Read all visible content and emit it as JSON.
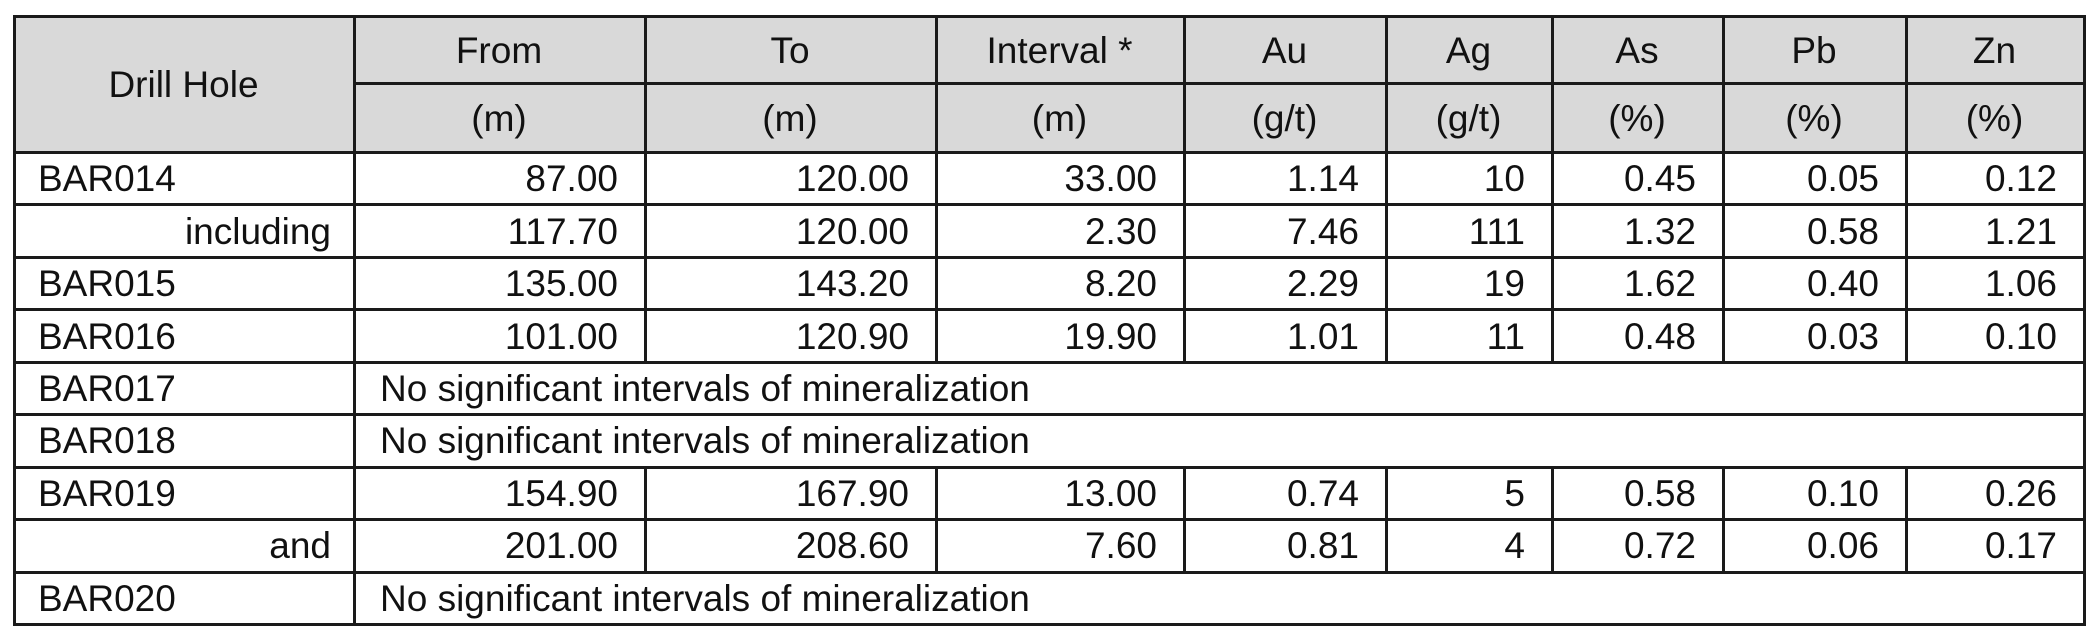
{
  "header": {
    "drill_hole": "Drill Hole",
    "columns": [
      {
        "name": "From",
        "unit": "(m)"
      },
      {
        "name": "To",
        "unit": "(m)"
      },
      {
        "name": "Interval *",
        "unit": "(m)"
      },
      {
        "name": "Au",
        "unit": "(g/t)"
      },
      {
        "name": "Ag",
        "unit": "(g/t)"
      },
      {
        "name": "As",
        "unit": "(%)"
      },
      {
        "name": "Pb",
        "unit": "(%)"
      },
      {
        "name": "Zn",
        "unit": "(%)"
      }
    ]
  },
  "rows": [
    {
      "hole": "BAR014",
      "sub": false,
      "values": [
        "87.00",
        "120.00",
        "33.00",
        "1.14",
        "10",
        "0.45",
        "0.05",
        "0.12"
      ]
    },
    {
      "hole": "including",
      "sub": true,
      "values": [
        "117.70",
        "120.00",
        "2.30",
        "7.46",
        "111",
        "1.32",
        "0.58",
        "1.21"
      ]
    },
    {
      "hole": "BAR015",
      "sub": false,
      "values": [
        "135.00",
        "143.20",
        "8.20",
        "2.29",
        "19",
        "1.62",
        "0.40",
        "1.06"
      ]
    },
    {
      "hole": "BAR016",
      "sub": false,
      "values": [
        "101.00",
        "120.90",
        "19.90",
        "1.01",
        "11",
        "0.48",
        "0.03",
        "0.10"
      ]
    },
    {
      "hole": "BAR017",
      "sub": false,
      "note": "No significant intervals of mineralization"
    },
    {
      "hole": "BAR018",
      "sub": false,
      "note": "No significant intervals of mineralization"
    },
    {
      "hole": "BAR019",
      "sub": false,
      "values": [
        "154.90",
        "167.90",
        "13.00",
        "0.74",
        "5",
        "0.58",
        "0.10",
        "0.26"
      ]
    },
    {
      "hole": "and",
      "sub": true,
      "values": [
        "201.00",
        "208.60",
        "7.60",
        "0.81",
        "4",
        "0.72",
        "0.06",
        "0.17"
      ]
    },
    {
      "hole": "BAR020",
      "sub": false,
      "note": "No significant intervals of mineralization"
    }
  ]
}
